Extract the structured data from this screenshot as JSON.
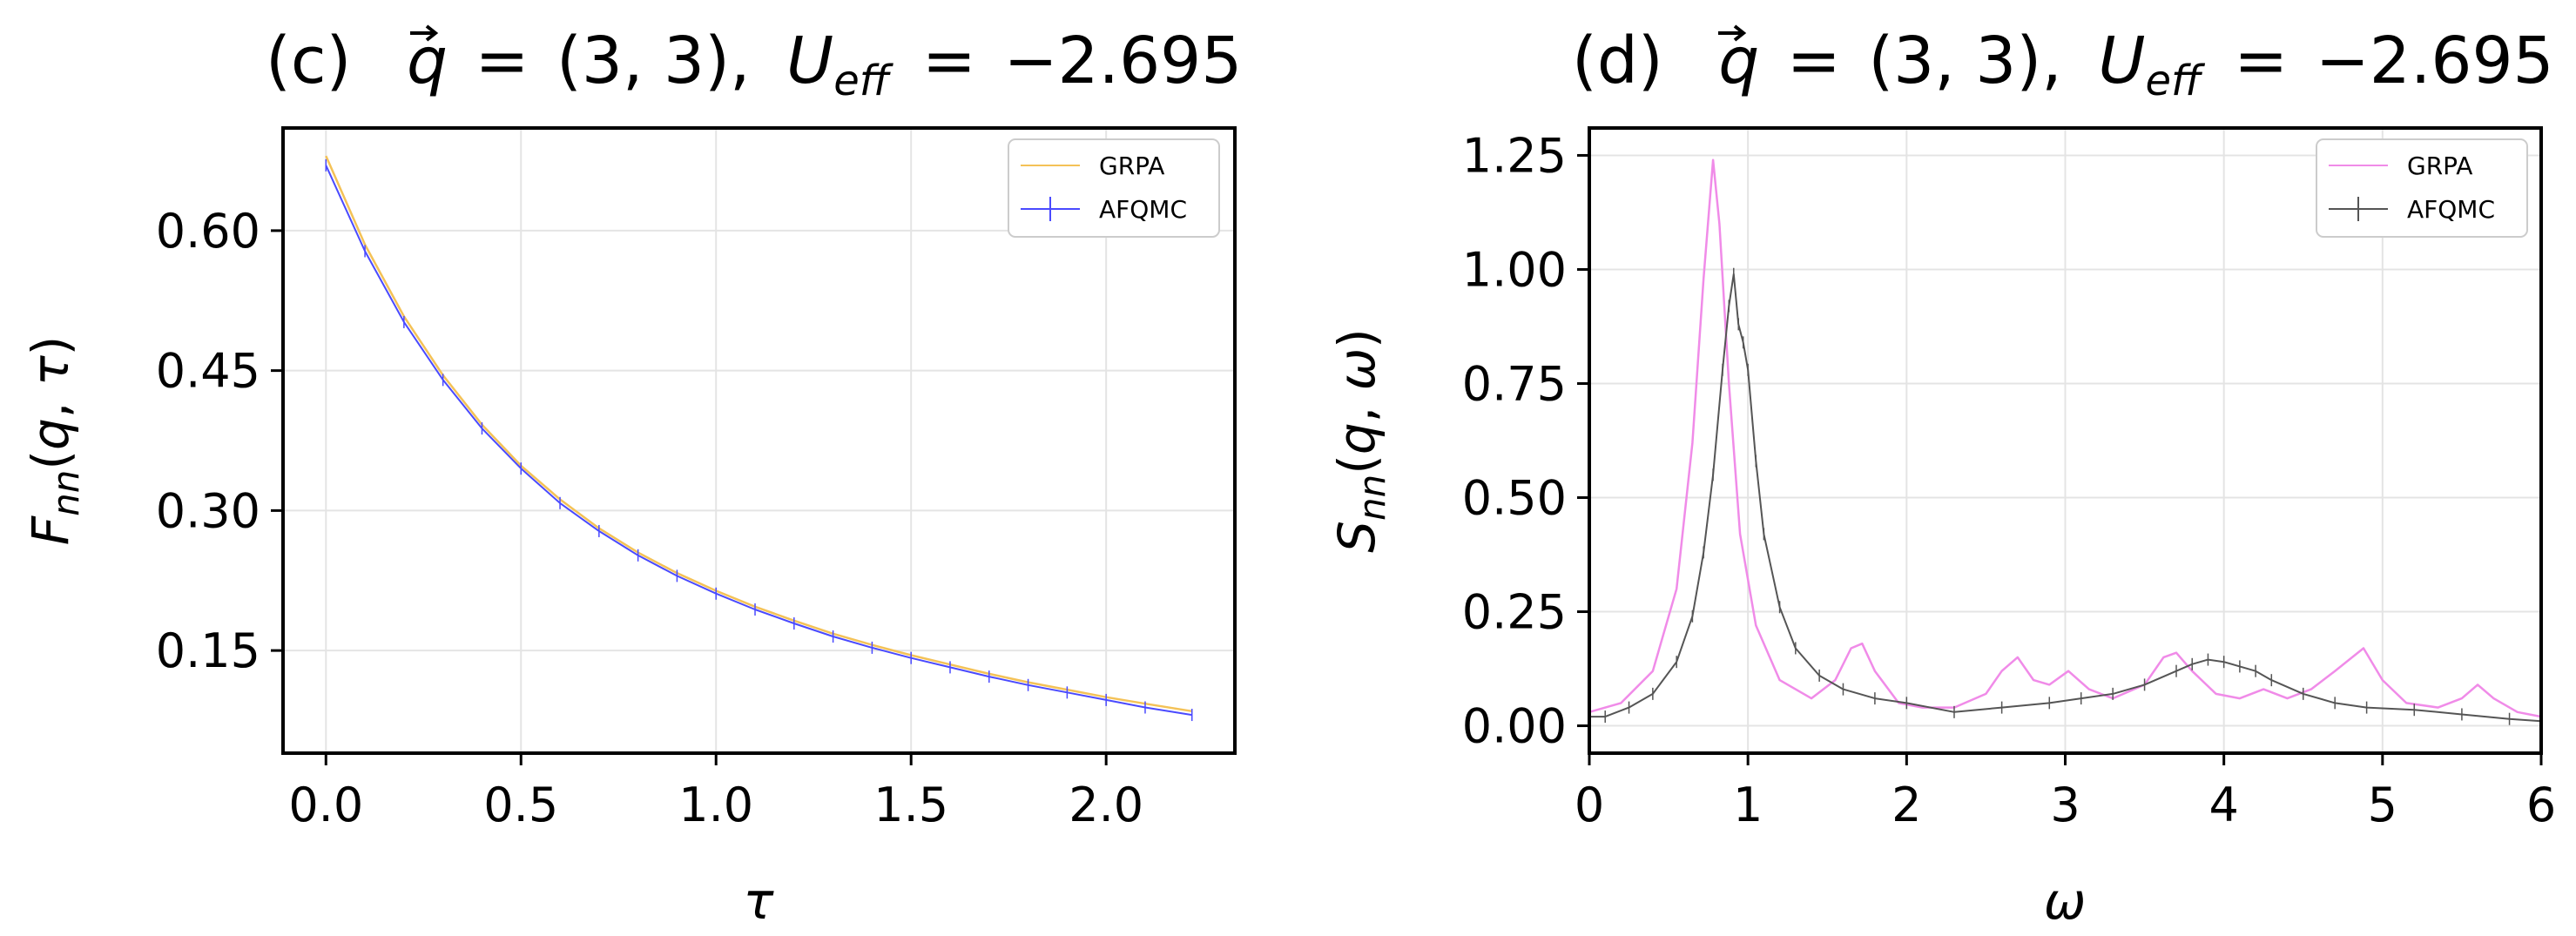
{
  "colors": {
    "grpa_left": "#f4c257",
    "afqmc_left": "#4a4aff",
    "grpa_right": "#f08be8",
    "afqmc_right": "#555555",
    "grid": "#e4e4e4",
    "axis": "#000000"
  },
  "chart_data": [
    {
      "type": "line",
      "panel": "c",
      "title_prefix": "(c)",
      "title_q": "(3, 3),",
      "title_ueff": "−2.695",
      "xlabel": "τ",
      "ylabel": "F_nn(q,τ)",
      "xlim": [
        -0.11,
        2.33
      ],
      "ylim": [
        0.04,
        0.71
      ],
      "xticks": [
        0.0,
        0.5,
        1.0,
        1.5,
        2.0
      ],
      "xtick_labels": [
        "0.0",
        "0.5",
        "1.0",
        "1.5",
        "2.0"
      ],
      "yticks": [
        0.15,
        0.3,
        0.45,
        0.6
      ],
      "ytick_labels": [
        "0.15",
        "0.30",
        "0.45",
        "0.60"
      ],
      "grid": true,
      "legend_position": "top-right",
      "series": [
        {
          "name": "GRPA",
          "x": [
            0.0,
            0.1,
            0.2,
            0.3,
            0.4,
            0.5,
            0.6,
            0.7,
            0.8,
            0.9,
            1.0,
            1.1,
            1.2,
            1.3,
            1.4,
            1.5,
            1.6,
            1.7,
            1.8,
            1.9,
            2.0,
            2.1,
            2.22
          ],
          "y": [
            0.68,
            0.585,
            0.508,
            0.445,
            0.392,
            0.348,
            0.312,
            0.281,
            0.255,
            0.233,
            0.214,
            0.197,
            0.182,
            0.168,
            0.156,
            0.145,
            0.135,
            0.125,
            0.116,
            0.108,
            0.1,
            0.093,
            0.085
          ]
        },
        {
          "name": "AFQMC",
          "x": [
            0.0,
            0.1,
            0.2,
            0.3,
            0.4,
            0.5,
            0.6,
            0.7,
            0.8,
            0.9,
            1.0,
            1.1,
            1.2,
            1.3,
            1.4,
            1.5,
            1.6,
            1.7,
            1.8,
            1.9,
            2.0,
            2.1,
            2.22
          ],
          "y": [
            0.67,
            0.578,
            0.502,
            0.44,
            0.388,
            0.345,
            0.308,
            0.278,
            0.252,
            0.23,
            0.211,
            0.194,
            0.179,
            0.165,
            0.153,
            0.142,
            0.132,
            0.122,
            0.113,
            0.105,
            0.097,
            0.089,
            0.081
          ]
        }
      ]
    },
    {
      "type": "line",
      "panel": "d",
      "title_prefix": "(d)",
      "title_q": "(3, 3),",
      "title_ueff": "−2.695",
      "xlabel": "ω",
      "ylabel": "S_nn(q,ω)",
      "xlim": [
        0,
        6
      ],
      "ylim": [
        -0.06,
        1.31
      ],
      "xticks": [
        0,
        1,
        2,
        3,
        4,
        5,
        6
      ],
      "xtick_labels": [
        "0",
        "1",
        "2",
        "3",
        "4",
        "5",
        "6"
      ],
      "yticks": [
        0.0,
        0.25,
        0.5,
        0.75,
        1.0,
        1.25
      ],
      "ytick_labels": [
        "0.00",
        "0.25",
        "0.50",
        "0.75",
        "1.00",
        "1.25"
      ],
      "grid": true,
      "legend_position": "top-right",
      "series": [
        {
          "name": "GRPA",
          "x": [
            0.0,
            0.2,
            0.4,
            0.55,
            0.65,
            0.72,
            0.78,
            0.82,
            0.88,
            0.95,
            1.05,
            1.2,
            1.4,
            1.55,
            1.65,
            1.72,
            1.8,
            1.95,
            2.1,
            2.3,
            2.5,
            2.6,
            2.7,
            2.8,
            2.9,
            3.02,
            3.15,
            3.3,
            3.5,
            3.62,
            3.7,
            3.8,
            3.95,
            4.1,
            4.25,
            4.4,
            4.55,
            4.7,
            4.88,
            5.0,
            5.15,
            5.35,
            5.5,
            5.6,
            5.7,
            5.85,
            6.0
          ],
          "y": [
            0.03,
            0.05,
            0.12,
            0.3,
            0.62,
            0.98,
            1.24,
            1.1,
            0.75,
            0.42,
            0.22,
            0.1,
            0.06,
            0.1,
            0.17,
            0.18,
            0.12,
            0.05,
            0.04,
            0.04,
            0.07,
            0.12,
            0.15,
            0.1,
            0.09,
            0.12,
            0.08,
            0.06,
            0.09,
            0.15,
            0.16,
            0.12,
            0.07,
            0.06,
            0.08,
            0.06,
            0.08,
            0.12,
            0.17,
            0.1,
            0.05,
            0.04,
            0.06,
            0.09,
            0.06,
            0.03,
            0.02
          ]
        },
        {
          "name": "AFQMC",
          "x": [
            0.0,
            0.1,
            0.25,
            0.4,
            0.55,
            0.65,
            0.72,
            0.78,
            0.84,
            0.88,
            0.91,
            0.94,
            0.97,
            1.0,
            1.05,
            1.1,
            1.2,
            1.3,
            1.45,
            1.6,
            1.8,
            2.0,
            2.3,
            2.6,
            2.9,
            3.1,
            3.3,
            3.5,
            3.7,
            3.8,
            3.9,
            4.0,
            4.1,
            4.2,
            4.3,
            4.5,
            4.7,
            4.9,
            5.2,
            5.5,
            5.8,
            6.0
          ],
          "y": [
            0.02,
            0.02,
            0.04,
            0.07,
            0.14,
            0.24,
            0.38,
            0.55,
            0.78,
            0.92,
            0.99,
            0.88,
            0.84,
            0.78,
            0.58,
            0.42,
            0.26,
            0.17,
            0.11,
            0.08,
            0.06,
            0.05,
            0.03,
            0.04,
            0.05,
            0.06,
            0.07,
            0.09,
            0.12,
            0.135,
            0.145,
            0.14,
            0.13,
            0.12,
            0.1,
            0.07,
            0.05,
            0.04,
            0.035,
            0.025,
            0.015,
            0.01
          ]
        }
      ]
    }
  ]
}
